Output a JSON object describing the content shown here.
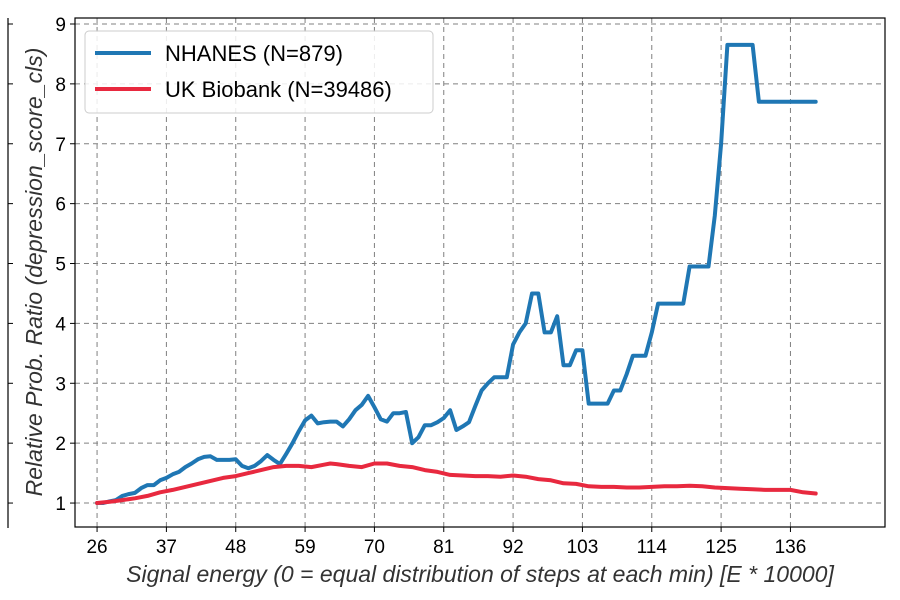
{
  "chart_data": {
    "type": "line",
    "title": "",
    "xlabel": "Signal energy (0 = equal distribution of steps at each min) [E * 10000]",
    "ylabel": "Relative Prob. Ratio (depression_score_cls)",
    "xlim": [
      22.5,
      151
    ],
    "ylim": [
      0.6,
      9.1
    ],
    "xticks": [
      26,
      37,
      48,
      59,
      70,
      81,
      92,
      103,
      114,
      125,
      136
    ],
    "yticks": [
      1,
      2,
      3,
      4,
      5,
      6,
      7,
      8,
      9
    ],
    "grid": true,
    "legend_position": "top-left",
    "series": [
      {
        "name": "NHANES (N=879)",
        "color": "#1f77b4",
        "x": [
          26,
          27,
          28,
          29,
          30,
          31,
          32,
          33,
          34,
          35,
          36,
          37,
          38,
          39,
          40,
          41,
          42,
          43,
          44,
          45,
          46,
          47,
          48,
          49,
          50,
          51,
          52,
          53,
          54,
          55,
          56,
          57,
          58,
          59,
          60,
          61,
          62,
          63,
          64,
          65,
          66,
          67,
          68,
          69,
          70,
          71,
          72,
          73,
          74,
          75,
          76,
          77,
          78,
          79,
          80,
          81,
          82,
          83,
          84,
          85,
          86,
          87,
          88,
          89,
          90,
          91,
          92,
          93,
          94,
          95,
          96,
          97,
          98,
          99,
          100,
          101,
          102,
          103,
          104,
          105,
          106,
          107,
          108,
          109,
          110,
          111,
          112,
          113,
          114,
          115,
          116,
          117,
          118,
          119,
          120,
          121,
          122,
          123,
          124,
          125,
          126,
          127,
          128,
          129,
          130,
          131,
          132,
          133,
          134,
          135,
          136,
          137,
          138,
          139,
          140
        ],
        "y": [
          1.0,
          1.0,
          1.03,
          1.05,
          1.12,
          1.15,
          1.17,
          1.25,
          1.3,
          1.3,
          1.38,
          1.42,
          1.48,
          1.52,
          1.6,
          1.66,
          1.73,
          1.77,
          1.78,
          1.72,
          1.72,
          1.72,
          1.73,
          1.62,
          1.58,
          1.62,
          1.7,
          1.8,
          1.72,
          1.65,
          1.82,
          2.0,
          2.2,
          2.38,
          2.46,
          2.33,
          2.35,
          2.36,
          2.36,
          2.28,
          2.4,
          2.55,
          2.64,
          2.79,
          2.6,
          2.4,
          2.36,
          2.5,
          2.5,
          2.52,
          2.0,
          2.1,
          2.3,
          2.3,
          2.35,
          2.42,
          2.55,
          2.22,
          2.28,
          2.35,
          2.62,
          2.88,
          3.0,
          3.1,
          3.1,
          3.1,
          3.65,
          3.85,
          4.0,
          4.5,
          4.5,
          3.85,
          3.85,
          4.12,
          3.3,
          3.3,
          3.55,
          3.55,
          2.66,
          2.66,
          2.66,
          2.66,
          2.88,
          2.88,
          3.15,
          3.46,
          3.46,
          3.46,
          3.85,
          4.33,
          4.33,
          4.33,
          4.33,
          4.33,
          4.95,
          4.95,
          4.95,
          4.95,
          5.8,
          7.0,
          8.65,
          8.65,
          8.65,
          8.65,
          8.65,
          7.7,
          7.7,
          7.7,
          7.7,
          7.7,
          7.7,
          7.7,
          7.7,
          7.7,
          7.7
        ]
      },
      {
        "name": "UK Biobank (N=39486)",
        "color": "#e8293f",
        "x": [
          26,
          28,
          30,
          32,
          34,
          36,
          38,
          40,
          42,
          44,
          46,
          48,
          50,
          52,
          54,
          56,
          58,
          60,
          62,
          63,
          64,
          66,
          68,
          70,
          72,
          74,
          76,
          78,
          80,
          82,
          84,
          86,
          88,
          90,
          92,
          94,
          96,
          98,
          100,
          102,
          104,
          106,
          108,
          110,
          112,
          114,
          116,
          118,
          120,
          122,
          124,
          126,
          128,
          130,
          132,
          134,
          136,
          138,
          140
        ],
        "y": [
          1.0,
          1.02,
          1.05,
          1.08,
          1.12,
          1.18,
          1.22,
          1.27,
          1.32,
          1.37,
          1.42,
          1.45,
          1.5,
          1.55,
          1.6,
          1.62,
          1.62,
          1.6,
          1.64,
          1.66,
          1.65,
          1.62,
          1.6,
          1.66,
          1.66,
          1.62,
          1.6,
          1.55,
          1.52,
          1.47,
          1.46,
          1.45,
          1.45,
          1.44,
          1.46,
          1.44,
          1.4,
          1.38,
          1.33,
          1.32,
          1.28,
          1.27,
          1.27,
          1.26,
          1.26,
          1.27,
          1.28,
          1.28,
          1.29,
          1.28,
          1.26,
          1.25,
          1.24,
          1.23,
          1.22,
          1.22,
          1.22,
          1.18,
          1.16
        ]
      }
    ]
  }
}
